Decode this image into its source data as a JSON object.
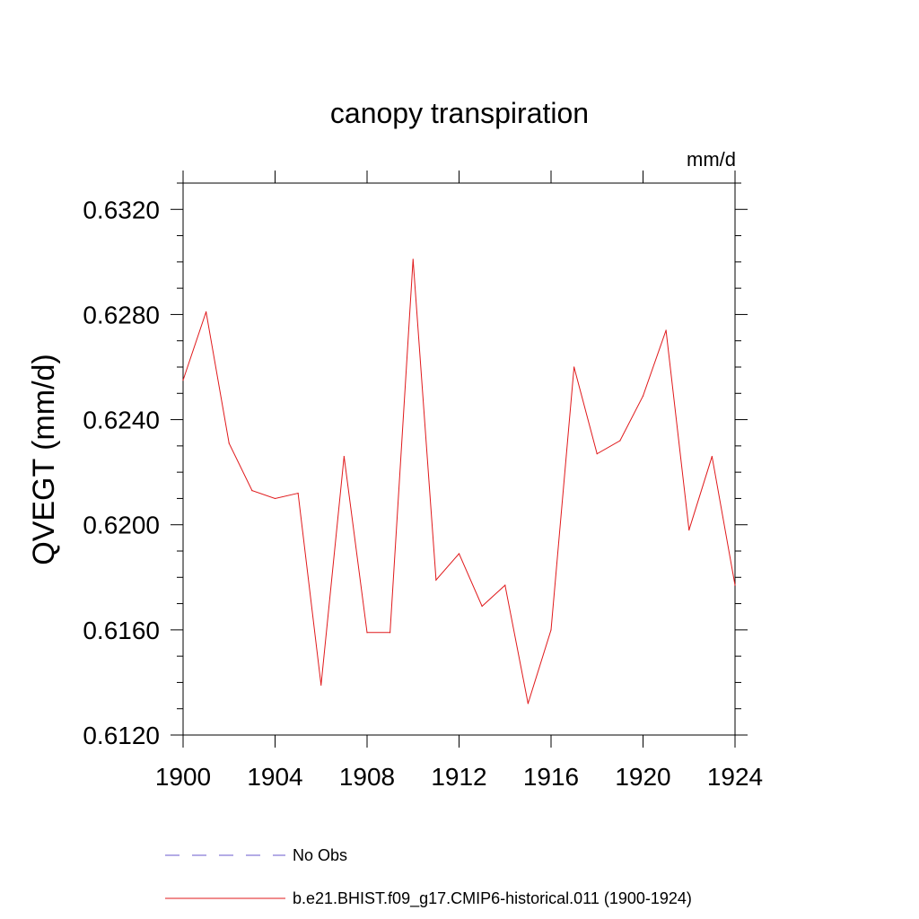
{
  "chart_data": {
    "type": "line",
    "title": "canopy transpiration",
    "units": "mm/d",
    "ylabel": "QVEGT  (mm/d)",
    "xlabel": "",
    "xlim": [
      1900,
      1924
    ],
    "ylim": [
      0.612,
      0.633
    ],
    "xticks": [
      1900,
      1904,
      1908,
      1912,
      1916,
      1920,
      1924
    ],
    "xtick_labels": [
      "1900",
      "1904",
      "1908",
      "1912",
      "1916",
      "1920",
      "1924"
    ],
    "yticks": [
      0.612,
      0.616,
      0.62,
      0.624,
      0.628,
      0.632
    ],
    "ytick_labels": [
      "0.6120",
      "0.6160",
      "0.6200",
      "0.6240",
      "0.6280",
      "0.6320"
    ],
    "grid": false,
    "legend_position": "bottom",
    "x": [
      1900,
      1901,
      1902,
      1903,
      1904,
      1905,
      1906,
      1907,
      1908,
      1909,
      1910,
      1911,
      1912,
      1913,
      1914,
      1915,
      1916,
      1917,
      1918,
      1919,
      1920,
      1921,
      1922,
      1923,
      1924
    ],
    "series": [
      {
        "name": "b.e21.BHIST.f09_g17.CMIP6-historical.011 (1900-1924)",
        "color": "#e0191b",
        "style": "solid",
        "values": [
          0.6255,
          0.6281,
          0.6231,
          0.6213,
          0.621,
          0.6212,
          0.6139,
          0.6226,
          0.6159,
          0.6159,
          0.6301,
          0.6179,
          0.6189,
          0.6169,
          0.6177,
          0.6132,
          0.616,
          0.626,
          0.6227,
          0.6232,
          0.6249,
          0.6274,
          0.6198,
          0.6226,
          0.6177
        ]
      }
    ],
    "legend": [
      {
        "label": "No Obs",
        "color": "#6a5acd",
        "style": "dashed"
      },
      {
        "label": "b.e21.BHIST.f09_g17.CMIP6-historical.011 (1900-1924)",
        "color": "#e0191b",
        "style": "solid"
      }
    ]
  }
}
